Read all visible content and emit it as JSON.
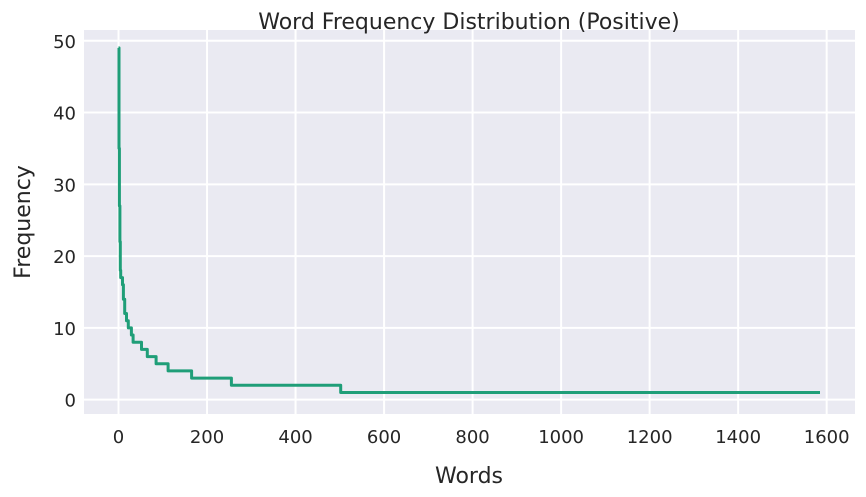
{
  "chart_data": {
    "type": "line",
    "title": "Word Frequency Distribution (Positive)",
    "xlabel": "Words",
    "ylabel": "Frequency",
    "xlim": [
      -78,
      1664
    ],
    "ylim": [
      -2,
      51.5
    ],
    "xticks": [
      0,
      200,
      400,
      600,
      800,
      1000,
      1200,
      1400,
      1600
    ],
    "yticks": [
      0,
      10,
      20,
      30,
      40,
      50
    ],
    "grid": true,
    "series": [
      {
        "color": "#1f9e78",
        "x": [
          0,
          1,
          2,
          3,
          4,
          5,
          7,
          9,
          11,
          14,
          16,
          18,
          20,
          22,
          25,
          29,
          33,
          40,
          46,
          52,
          60,
          65,
          75,
          85,
          100,
          112,
          130,
          150,
          165,
          200,
          230,
          255,
          300,
          400,
          502,
          600,
          800,
          1000,
          1200,
          1400,
          1585
        ],
        "y": [
          49,
          35,
          27,
          22,
          18,
          17,
          17,
          16,
          14,
          12,
          12,
          11,
          11,
          10,
          10,
          9,
          8,
          8,
          8,
          7,
          7,
          6,
          6,
          5,
          5,
          4,
          4,
          4,
          3,
          3,
          3,
          2,
          2,
          2,
          1,
          1,
          1,
          1,
          1,
          1,
          1
        ]
      }
    ]
  }
}
